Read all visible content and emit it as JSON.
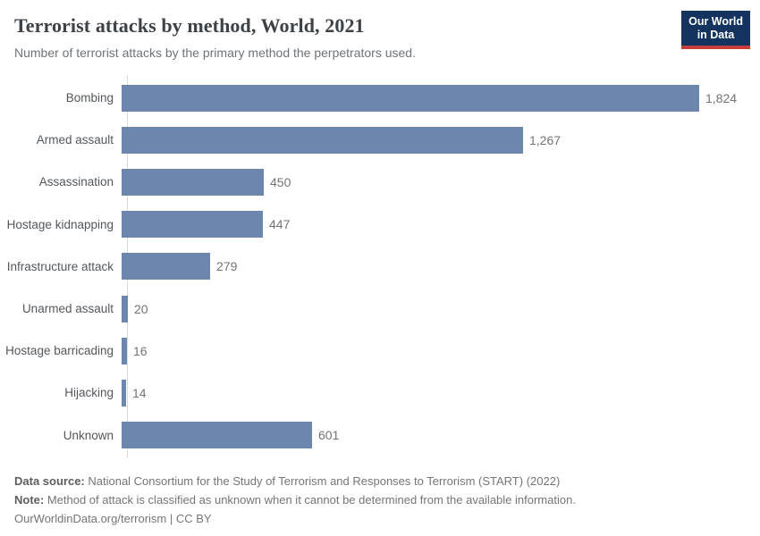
{
  "header": {
    "title": "Terrorist attacks by method, World, 2021",
    "subtitle": "Number of terrorist attacks by the primary method the perpetrators used.",
    "logo": {
      "line1": "Our World",
      "line2": "in Data",
      "bg_color": "#14345f",
      "accent_color": "#c53d3d"
    }
  },
  "chart_data": {
    "type": "bar",
    "orientation": "horizontal",
    "title": "Terrorist attacks by method, World, 2021",
    "xlabel": "",
    "ylabel": "",
    "categories": [
      "Bombing",
      "Armed assault",
      "Assassination",
      "Hostage kidnapping",
      "Infrastructure attack",
      "Unarmed assault",
      "Hostage barricading",
      "Hijacking",
      "Unknown"
    ],
    "values": [
      1824,
      1267,
      450,
      447,
      279,
      20,
      16,
      14,
      601
    ],
    "value_labels": [
      "1,824",
      "1,267",
      "450",
      "447",
      "279",
      "20",
      "16",
      "14",
      "601"
    ],
    "xlim": [
      0,
      1824
    ],
    "grid": false,
    "legend": "none",
    "bar_color": "#6c86ae"
  },
  "footer": {
    "data_source_label": "Data source:",
    "data_source_text": " National Consortium for the Study of Terrorism and Responses to Terrorism (START) (2022)",
    "note_label": "Note:",
    "note_text": " Method of attack is classified as unknown when it cannot be determined from the available information.",
    "url_line": "OurWorldinData.org/terrorism | CC BY"
  }
}
